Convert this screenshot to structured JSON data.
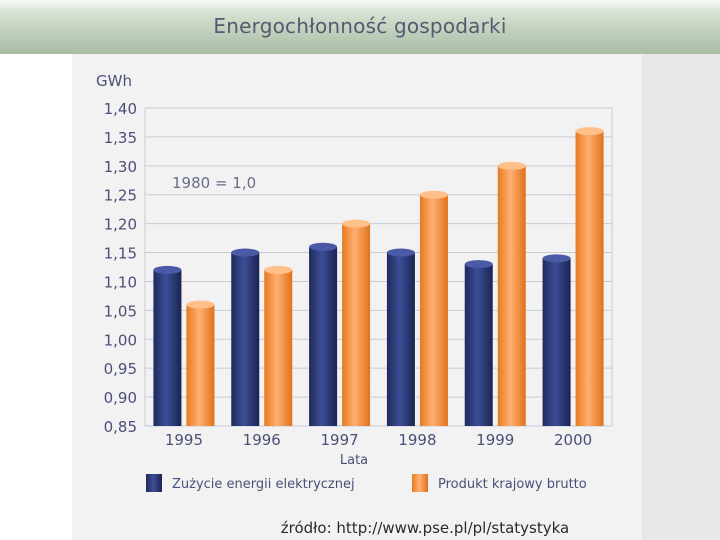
{
  "header": {
    "title": "Energochłonność gospodarki"
  },
  "footer": {
    "source": "źródło: http://www.pse.pl/pl/statystyka"
  },
  "chart_data": {
    "type": "bar",
    "title": "",
    "ylabel": "GWh",
    "xlabel": "Lata",
    "annotation": "1980 = 1,0",
    "categories": [
      "1995",
      "1996",
      "1997",
      "1998",
      "1999",
      "2000"
    ],
    "series": [
      {
        "name": "Zużycie energii elektrycznej",
        "values": [
          1.12,
          1.15,
          1.16,
          1.15,
          1.13,
          1.14
        ]
      },
      {
        "name": "Produkt krajowy brutto",
        "values": [
          1.06,
          1.12,
          1.2,
          1.25,
          1.3,
          1.36
        ]
      }
    ],
    "ylim": [
      0.85,
      1.4
    ],
    "yticks": [
      "0,85",
      "0,90",
      "0,95",
      "1,00",
      "1,05",
      "1,10",
      "1,15",
      "1,20",
      "1,25",
      "1,30",
      "1,35",
      "1,40"
    ],
    "grid": true,
    "legend_position": "bottom",
    "colors": {
      "series1": "#2b3a78",
      "series2": "#f28c38",
      "grid": "#c8cbd6",
      "axis_text": "#4a5078"
    }
  }
}
